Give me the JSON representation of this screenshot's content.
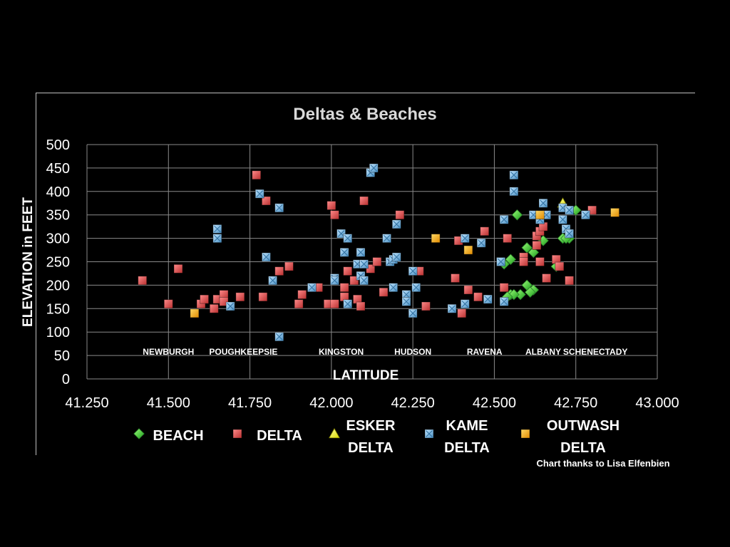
{
  "chart_data": {
    "type": "scatter",
    "title": "Deltas & Beaches",
    "xlabel": "LATITUDE",
    "ylabel": "ELEVATION in FEET",
    "xlim": [
      41.25,
      43.0
    ],
    "ylim": [
      0,
      500
    ],
    "x_ticks": [
      "41.250",
      "41.500",
      "41.750",
      "42.000",
      "42.250",
      "42.500",
      "42.750",
      "43.000"
    ],
    "y_ticks": [
      "0",
      "50",
      "100",
      "150",
      "200",
      "250",
      "300",
      "350",
      "400",
      "450",
      "500"
    ],
    "grid": true,
    "legend_placement": "bottom",
    "city_labels": [
      {
        "text": "NEWBURGH",
        "x": 41.5
      },
      {
        "text": "POUGHKEEPSIE",
        "x": 41.73
      },
      {
        "text": "KINGSTON",
        "x": 42.03
      },
      {
        "text": "HUDSON",
        "x": 42.25
      },
      {
        "text": "RAVENA",
        "x": 42.47
      },
      {
        "text": "ALBANY",
        "x": 42.65
      },
      {
        "text": "SCHENECTADY",
        "x": 42.81
      }
    ],
    "series": [
      {
        "name": "BEACH",
        "marker": "diamond",
        "color": "#33cc33",
        "points": [
          [
            42.53,
            245
          ],
          [
            42.55,
            255
          ],
          [
            42.57,
            350
          ],
          [
            42.6,
            280
          ],
          [
            42.62,
            270
          ],
          [
            42.65,
            295
          ],
          [
            42.6,
            200
          ],
          [
            42.62,
            190
          ],
          [
            42.58,
            180
          ],
          [
            42.55,
            180
          ],
          [
            42.56,
            180
          ],
          [
            42.54,
            175
          ],
          [
            42.61,
            185
          ],
          [
            42.71,
            300
          ],
          [
            42.73,
            300
          ],
          [
            42.72,
            300
          ],
          [
            42.75,
            360
          ],
          [
            42.69,
            240
          ]
        ]
      },
      {
        "name": "DELTA",
        "marker": "square",
        "color": "#e05555",
        "points": [
          [
            41.42,
            210
          ],
          [
            41.5,
            160
          ],
          [
            41.53,
            235
          ],
          [
            41.6,
            160
          ],
          [
            41.61,
            170
          ],
          [
            41.64,
            150
          ],
          [
            41.65,
            170
          ],
          [
            41.67,
            180
          ],
          [
            41.67,
            165
          ],
          [
            41.72,
            175
          ],
          [
            41.77,
            435
          ],
          [
            41.79,
            175
          ],
          [
            41.8,
            380
          ],
          [
            41.84,
            230
          ],
          [
            41.87,
            240
          ],
          [
            41.9,
            160
          ],
          [
            41.91,
            180
          ],
          [
            41.96,
            195
          ],
          [
            41.99,
            160
          ],
          [
            42.0,
            370
          ],
          [
            42.01,
            350
          ],
          [
            42.01,
            160
          ],
          [
            42.04,
            175
          ],
          [
            42.04,
            195
          ],
          [
            42.05,
            230
          ],
          [
            42.07,
            210
          ],
          [
            42.08,
            170
          ],
          [
            42.09,
            155
          ],
          [
            42.1,
            380
          ],
          [
            42.12,
            235
          ],
          [
            42.14,
            250
          ],
          [
            42.16,
            185
          ],
          [
            42.21,
            350
          ],
          [
            42.27,
            230
          ],
          [
            42.29,
            155
          ],
          [
            42.37,
            150
          ],
          [
            42.38,
            215
          ],
          [
            42.39,
            295
          ],
          [
            42.4,
            140
          ],
          [
            42.42,
            190
          ],
          [
            42.45,
            175
          ],
          [
            42.47,
            315
          ],
          [
            42.54,
            300
          ],
          [
            42.53,
            195
          ],
          [
            42.59,
            260
          ],
          [
            42.59,
            250
          ],
          [
            42.63,
            285
          ],
          [
            42.63,
            305
          ],
          [
            42.64,
            315
          ],
          [
            42.65,
            325
          ],
          [
            42.64,
            250
          ],
          [
            42.66,
            215
          ],
          [
            42.69,
            255
          ],
          [
            42.7,
            240
          ],
          [
            42.73,
            210
          ],
          [
            42.8,
            360
          ]
        ]
      },
      {
        "name": "ESKER DELTA",
        "marker": "triangle",
        "color": "#ffff33",
        "points": [
          [
            42.71,
            375
          ]
        ]
      },
      {
        "name": "KAME DELTA",
        "marker": "square",
        "color": "#7ab8e0",
        "points": [
          [
            41.65,
            320
          ],
          [
            41.65,
            300
          ],
          [
            41.69,
            155
          ],
          [
            41.78,
            395
          ],
          [
            41.8,
            260
          ],
          [
            41.82,
            210
          ],
          [
            41.84,
            365
          ],
          [
            41.84,
            90
          ],
          [
            41.94,
            195
          ],
          [
            42.01,
            215
          ],
          [
            42.01,
            210
          ],
          [
            42.03,
            310
          ],
          [
            42.04,
            270
          ],
          [
            42.05,
            300
          ],
          [
            42.05,
            160
          ],
          [
            42.08,
            245
          ],
          [
            42.09,
            270
          ],
          [
            42.09,
            220
          ],
          [
            42.1,
            210
          ],
          [
            42.1,
            245
          ],
          [
            42.12,
            440
          ],
          [
            42.13,
            450
          ],
          [
            42.17,
            300
          ],
          [
            42.18,
            250
          ],
          [
            42.19,
            255
          ],
          [
            42.2,
            330
          ],
          [
            42.2,
            260
          ],
          [
            42.19,
            195
          ],
          [
            42.23,
            180
          ],
          [
            42.23,
            165
          ],
          [
            42.25,
            230
          ],
          [
            42.25,
            140
          ],
          [
            42.26,
            195
          ],
          [
            42.37,
            150
          ],
          [
            42.41,
            300
          ],
          [
            42.41,
            160
          ],
          [
            42.46,
            290
          ],
          [
            42.48,
            170
          ],
          [
            42.52,
            250
          ],
          [
            42.53,
            340
          ],
          [
            42.53,
            165
          ],
          [
            42.56,
            400
          ],
          [
            42.56,
            435
          ],
          [
            42.62,
            350
          ],
          [
            42.64,
            340
          ],
          [
            42.65,
            375
          ],
          [
            42.66,
            350
          ],
          [
            42.71,
            340
          ],
          [
            42.71,
            365
          ],
          [
            42.72,
            320
          ],
          [
            42.73,
            360
          ],
          [
            42.73,
            310
          ],
          [
            42.78,
            350
          ]
        ]
      },
      {
        "name": "OUTWASH DELTA",
        "marker": "square",
        "color": "#ffaa00",
        "points": [
          [
            41.58,
            140
          ],
          [
            42.32,
            300
          ],
          [
            42.42,
            275
          ],
          [
            42.64,
            350
          ],
          [
            42.87,
            355
          ]
        ]
      }
    ],
    "legend": [
      {
        "label_lines": [
          "BEACH"
        ],
        "marker": "diamond",
        "color": "#33cc33"
      },
      {
        "label_lines": [
          "DELTA"
        ],
        "marker": "square",
        "color": "#e05555"
      },
      {
        "label_lines": [
          "ESKER",
          "DELTA"
        ],
        "marker": "triangle",
        "color": "#ffff33"
      },
      {
        "label_lines": [
          "KAME",
          "DELTA"
        ],
        "marker": "square",
        "color": "#7ab8e0"
      },
      {
        "label_lines": [
          "OUTWASH",
          "DELTA"
        ],
        "marker": "square",
        "color": "#ffaa00"
      }
    ],
    "credit": "Chart thanks to Lisa Elfenbien"
  }
}
